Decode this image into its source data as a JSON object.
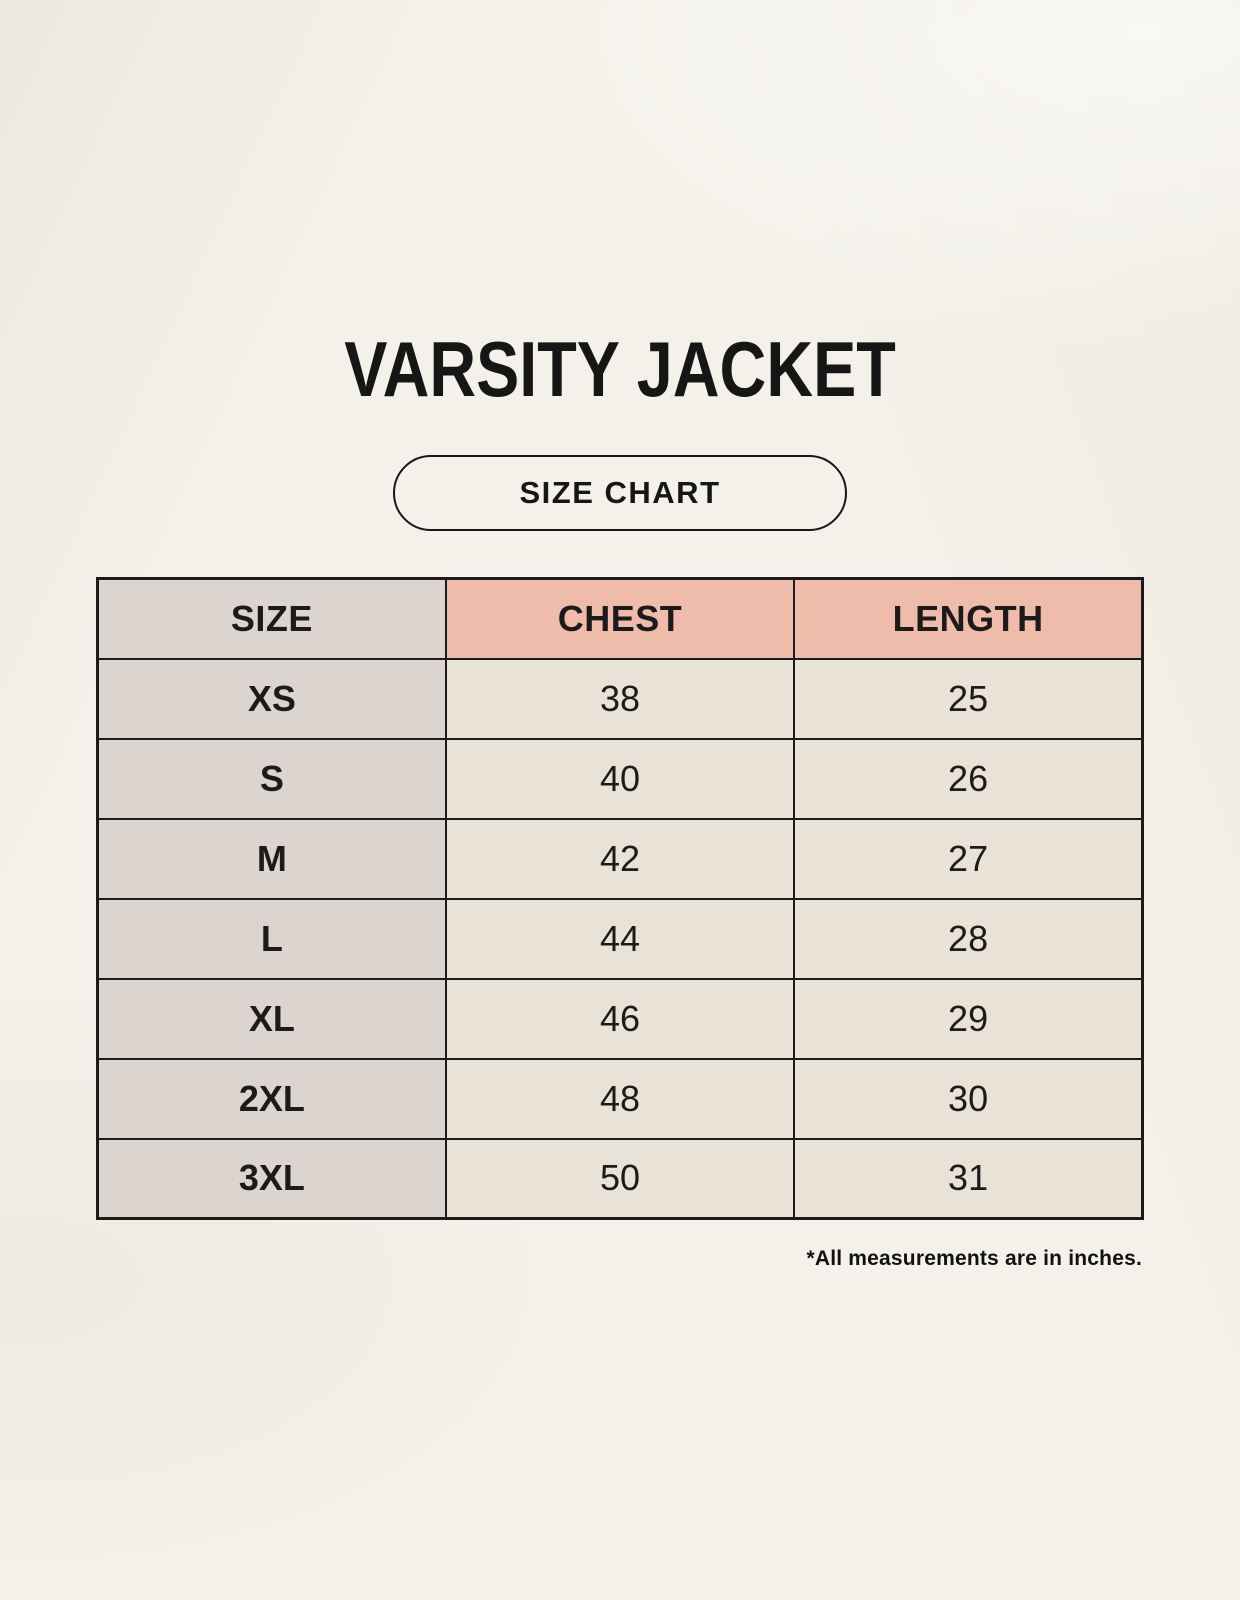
{
  "page": {
    "title": "VARSITY JACKET",
    "badge_label": "SIZE CHART",
    "footnote": "*All measurements are in inches."
  },
  "chart_data": {
    "type": "table",
    "title": "VARSITY JACKET",
    "subtitle": "SIZE CHART",
    "columns": [
      "SIZE",
      "CHEST",
      "LENGTH"
    ],
    "rows": [
      [
        "XS",
        38,
        25
      ],
      [
        "S",
        40,
        26
      ],
      [
        "M",
        42,
        27
      ],
      [
        "L",
        44,
        28
      ],
      [
        "XL",
        46,
        29
      ],
      [
        "2XL",
        48,
        30
      ],
      [
        "3XL",
        50,
        31
      ]
    ],
    "note": "*All measurements are in inches.",
    "units": "inches"
  },
  "colors": {
    "background": "#f4f1ea",
    "header_accent": "#efbcab",
    "size_column": "#dcd4cf",
    "value_cell": "#e9e2d7",
    "border": "#1b1b1b",
    "text": "#1b1b1b"
  }
}
